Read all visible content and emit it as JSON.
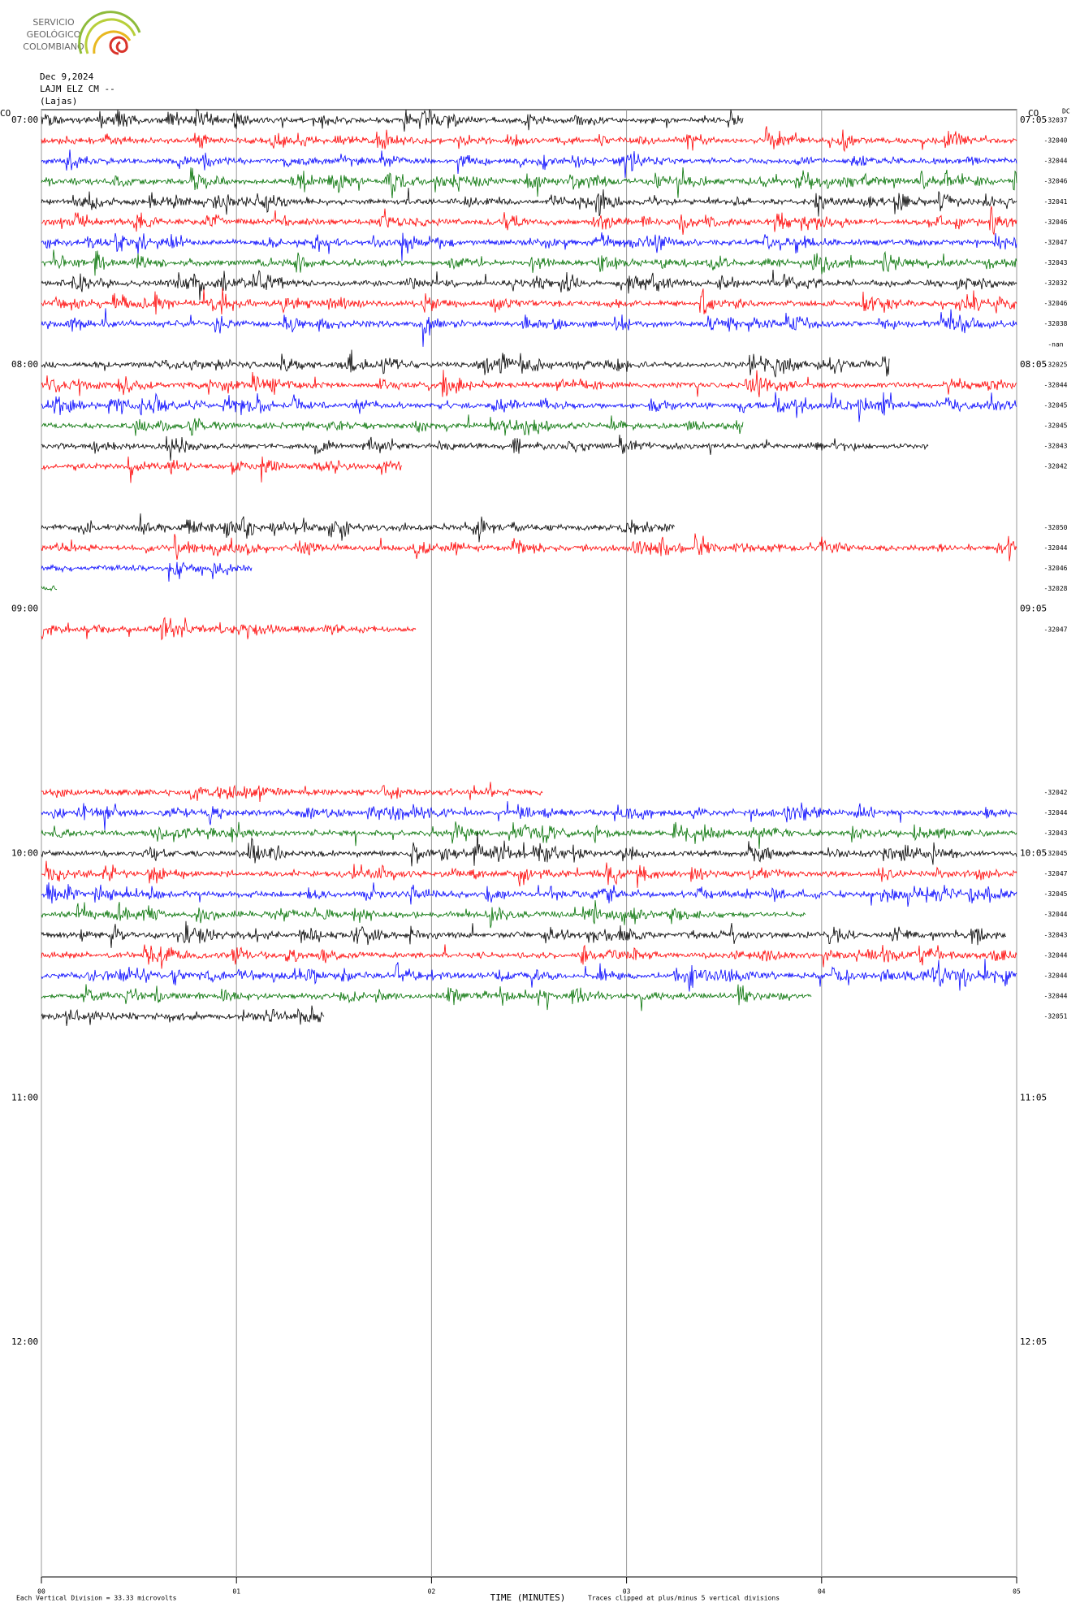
{
  "chart_data": {
    "type": "helicorder",
    "logo": [
      "SERVICIO",
      "GEOLÓGICO",
      "COLOMBIANO"
    ],
    "date": "Dec 9,2024",
    "station": "LAJM ELZ CM --",
    "place": "(Lajas)",
    "network_left": "CO",
    "network_right": "CO",
    "dc_header": "DC",
    "x_label": "TIME (MINUTES)",
    "scale_note": "Each Vertical Division =   33.33 microvolts",
    "clip_note": "Traces clipped at plus/minus 5 vertical divisions",
    "xlim": [
      0,
      5
    ],
    "xticks": [
      {
        "value": 0,
        "label": "00"
      },
      {
        "value": 1,
        "label": "01"
      },
      {
        "value": 2,
        "label": "02"
      },
      {
        "value": 3,
        "label": "03"
      },
      {
        "value": 4,
        "label": "04"
      },
      {
        "value": 5,
        "label": "05"
      }
    ],
    "hours": [
      {
        "row": 0,
        "left": "07:00",
        "right": "07:05"
      },
      {
        "row": 12,
        "left": "08:00",
        "right": "08:05"
      },
      {
        "row": 24,
        "left": "09:00",
        "right": "09:05"
      },
      {
        "row": 36,
        "left": "10:00",
        "right": "10:05"
      },
      {
        "row": 48,
        "left": "11:00",
        "right": "11:05"
      },
      {
        "row": 60,
        "left": "12:00",
        "right": "12:05"
      }
    ],
    "traces": [
      {
        "row": 0,
        "color": "#000000",
        "end": 3.6,
        "dc": -32037
      },
      {
        "row": 1,
        "color": "#ff0000",
        "end": 5,
        "dc": -32040
      },
      {
        "row": 2,
        "color": "#0000ff",
        "end": 5,
        "dc": -32044
      },
      {
        "row": 3,
        "color": "#007000",
        "end": 5,
        "dc": -32046
      },
      {
        "row": 4,
        "color": "#000000",
        "end": 5,
        "dc": -32041
      },
      {
        "row": 5,
        "color": "#ff0000",
        "end": 5,
        "dc": -32046
      },
      {
        "row": 6,
        "color": "#0000ff",
        "end": 5,
        "dc": -32047
      },
      {
        "row": 7,
        "color": "#007000",
        "end": 5,
        "dc": -32043
      },
      {
        "row": 8,
        "color": "#000000",
        "end": 5,
        "dc": -32032
      },
      {
        "row": 9,
        "color": "#ff0000",
        "end": 5,
        "dc": -32046
      },
      {
        "row": 10,
        "color": "#0000ff",
        "end": 5,
        "dc": -32038
      },
      {
        "row": 11,
        "dc": "-nan"
      },
      {
        "row": 12,
        "color": "#000000",
        "end": 4.35,
        "dc": -32025
      },
      {
        "row": 13,
        "color": "#ff0000",
        "end": 5,
        "dc": -32044
      },
      {
        "row": 14,
        "color": "#0000ff",
        "end": 5,
        "dc": -32045
      },
      {
        "row": 15,
        "color": "#007000",
        "end": 3.6,
        "dc": -32045
      },
      {
        "row": 16,
        "color": "#000000",
        "end": 4.55,
        "dc": -32043
      },
      {
        "row": 17,
        "color": "#ff0000",
        "end": 1.85,
        "dc": -32042
      },
      {
        "row": 20,
        "color": "#000000",
        "end": 3.25,
        "dc": -32050
      },
      {
        "row": 21,
        "color": "#ff0000",
        "end": 5,
        "dc": -32044
      },
      {
        "row": 22,
        "color": "#0000ff",
        "end": 1.08,
        "dc": -32046
      },
      {
        "row": 23,
        "color": "#007000",
        "end": 0.08,
        "dc": -32028
      },
      {
        "row": 25,
        "color": "#ff0000",
        "end": 1.92,
        "dc": -32047
      },
      {
        "row": 33,
        "color": "#ff0000",
        "end": 2.57,
        "dc": -32042
      },
      {
        "row": 34,
        "color": "#0000ff",
        "end": 5,
        "dc": -32044
      },
      {
        "row": 35,
        "color": "#007000",
        "end": 5,
        "dc": -32043
      },
      {
        "row": 36,
        "color": "#000000",
        "end": 5,
        "dc": -32045
      },
      {
        "row": 37,
        "color": "#ff0000",
        "end": 5,
        "dc": -32047
      },
      {
        "row": 38,
        "color": "#0000ff",
        "end": 5,
        "dc": -32045
      },
      {
        "row": 39,
        "color": "#007000",
        "end": 3.92,
        "dc": -32044
      },
      {
        "row": 40,
        "color": "#000000",
        "end": 4.95,
        "dc": -32043
      },
      {
        "row": 41,
        "color": "#ff0000",
        "end": 5,
        "dc": -32044
      },
      {
        "row": 42,
        "color": "#0000ff",
        "end": 5,
        "dc": -32044
      },
      {
        "row": 43,
        "color": "#007000",
        "end": 3.95,
        "dc": -32044
      },
      {
        "row": 44,
        "color": "#000000",
        "end": 1.45,
        "dc": -32051
      }
    ]
  }
}
